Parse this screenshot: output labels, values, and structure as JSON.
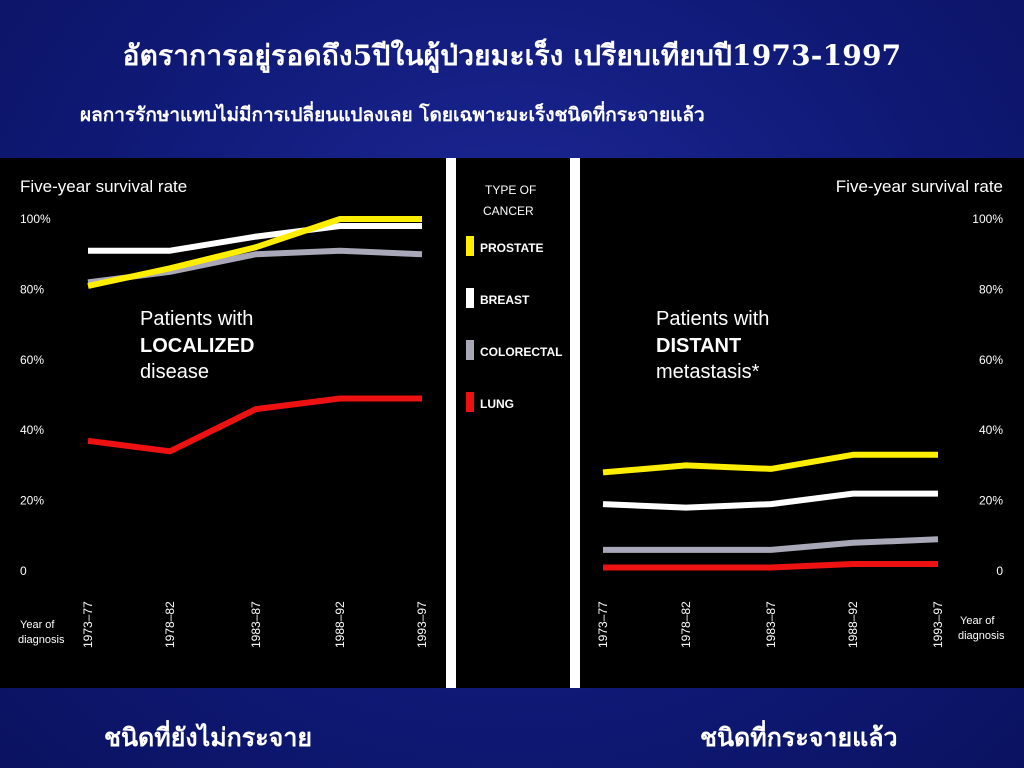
{
  "slide": {
    "title": "อัตราการอยู่รอดถึง5ปีในผู้ป่วยมะเร็ง เปรียบเทียบปี1973-1997",
    "subtitle": "ผลการรักษาแทบไม่มีการเปลี่ยนแปลงเลย โดยเฉพาะมะเร็งชนิดที่กระจายแล้ว",
    "caption_left": "ชนิดที่ยังไม่กระจาย",
    "caption_right": "ชนิดที่กระจายแล้ว"
  },
  "colors": {
    "prostate": "#ffee00",
    "breast": "#ffffff",
    "colorectal": "#a8a8b8",
    "lung": "#ee1111"
  },
  "legend": {
    "title_line1": "TYPE OF",
    "title_line2": "CANCER",
    "items": [
      "PROSTATE",
      "BREAST",
      "COLORECTAL",
      "LUNG"
    ]
  },
  "chart_data": [
    {
      "type": "line",
      "ylabel": "Five-year survival rate",
      "xlabel": "Year of diagnosis",
      "xlabel_line1": "Year of",
      "xlabel_line2": "diagnosis",
      "panel_line1": "Patients with",
      "panel_line2": "LOCALIZED",
      "panel_line3": "disease",
      "categories": [
        "1973–77",
        "1978–82",
        "1983–87",
        "1988–92",
        "1993–97"
      ],
      "yticks": [
        "100%",
        "80%",
        "60%",
        "40%",
        "20%",
        "0"
      ],
      "ylim": [
        0,
        100
      ],
      "series": [
        {
          "name": "BREAST",
          "values": [
            91,
            91,
            95,
            98,
            98
          ]
        },
        {
          "name": "COLORECTAL",
          "values": [
            82,
            85,
            90,
            91,
            90
          ]
        },
        {
          "name": "PROSTATE",
          "values": [
            81,
            86,
            92,
            100,
            100
          ]
        },
        {
          "name": "LUNG",
          "values": [
            37,
            34,
            46,
            49,
            49
          ]
        }
      ]
    },
    {
      "type": "line",
      "ylabel": "Five-year survival rate",
      "xlabel": "Year of diagnosis",
      "xlabel_line1": "Year of",
      "xlabel_line2": "diagnosis",
      "panel_line1": "Patients with",
      "panel_line2": "DISTANT",
      "panel_line3": "metastasis*",
      "categories": [
        "1973–77",
        "1978–82",
        "1983–87",
        "1988–92",
        "1993–97"
      ],
      "yticks": [
        "100%",
        "80%",
        "60%",
        "40%",
        "20%",
        "0"
      ],
      "ylim": [
        0,
        100
      ],
      "series": [
        {
          "name": "PROSTATE",
          "values": [
            28,
            30,
            29,
            33,
            33
          ]
        },
        {
          "name": "BREAST",
          "values": [
            19,
            18,
            19,
            22,
            22
          ]
        },
        {
          "name": "COLORECTAL",
          "values": [
            6,
            6,
            6,
            8,
            9
          ]
        },
        {
          "name": "LUNG",
          "values": [
            1,
            1,
            1,
            2,
            2
          ]
        }
      ]
    }
  ]
}
